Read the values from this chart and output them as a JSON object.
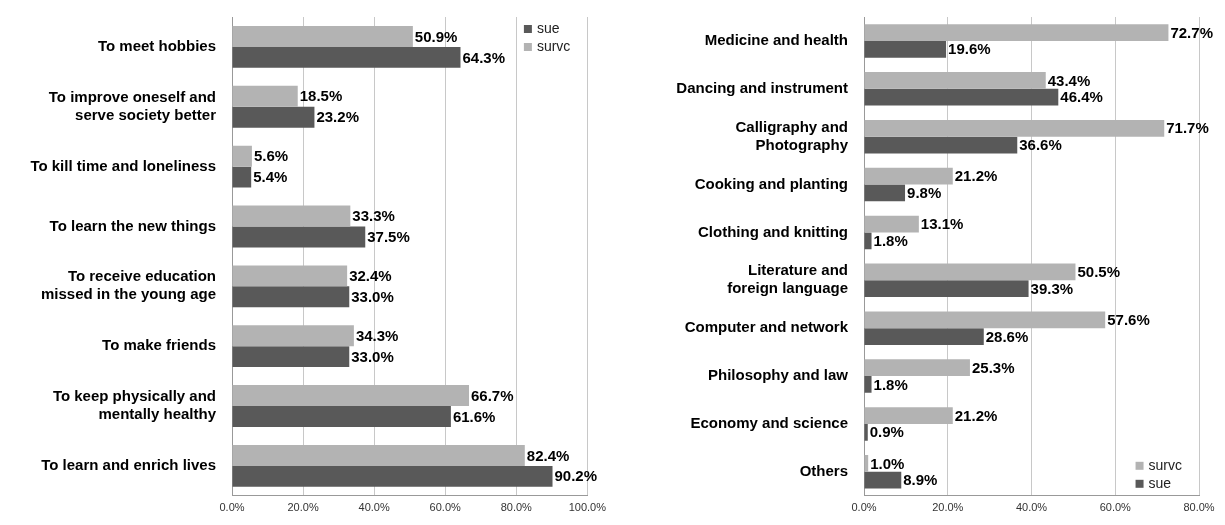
{
  "chart_data": [
    {
      "type": "bar",
      "orientation": "horizontal",
      "categories": [
        "To meet hobbies",
        "To improve oneself and\nserve society better",
        "To kill time and loneliness",
        "To learn the new things",
        "To receive education\nmissed in the young age",
        "To make friends",
        "To keep physically and\nmentally healthy",
        "To learn and enrich lives"
      ],
      "series": [
        {
          "name": "survc",
          "color": "#b3b3b3",
          "values": [
            50.9,
            18.5,
            5.6,
            33.3,
            32.4,
            34.3,
            66.7,
            82.4
          ],
          "value_labels": [
            "50.9%",
            "18.5%",
            "5.6%",
            "33.3%",
            "32.4%",
            "34.3%",
            "66.7%",
            "82.4%"
          ]
        },
        {
          "name": "sue",
          "color": "#595959",
          "values": [
            64.3,
            23.2,
            5.4,
            37.5,
            33.0,
            33.0,
            61.6,
            90.2
          ],
          "value_labels": [
            "64.3%",
            "23.2%",
            "5.4%",
            "37.5%",
            "33.0%",
            "33.0%",
            "61.6%",
            "90.2%"
          ]
        }
      ],
      "xlim": [
        0,
        100
      ],
      "xticks": [
        {
          "value": 0,
          "label": "0.0%"
        },
        {
          "value": 20,
          "label": "20.0%"
        },
        {
          "value": 40,
          "label": "40.0%"
        },
        {
          "value": 60,
          "label": "60.0%"
        },
        {
          "value": 80,
          "label": "80.0%"
        },
        {
          "value": 100,
          "label": "100.0%"
        }
      ],
      "grid": "x",
      "legend": "top right"
    },
    {
      "type": "bar",
      "orientation": "horizontal",
      "categories": [
        "Medicine and health",
        "Dancing and instrument",
        "Calligraphy and\nPhotography",
        "Cooking and planting",
        "Clothing and knitting",
        "Literature and\nforeign language",
        "Computer and network",
        "Philosophy and law",
        "Economy and science",
        "Others"
      ],
      "series": [
        {
          "name": "survc",
          "color": "#b3b3b3",
          "values": [
            72.7,
            43.4,
            71.7,
            21.2,
            13.1,
            50.5,
            57.6,
            25.3,
            21.2,
            1.0
          ],
          "value_labels": [
            "72.7%",
            "43.4%",
            "71.7%",
            "21.2%",
            "13.1%",
            "50.5%",
            "57.6%",
            "25.3%",
            "21.2%",
            "1.0%"
          ]
        },
        {
          "name": "sue",
          "color": "#595959",
          "values": [
            19.6,
            46.4,
            36.6,
            9.8,
            1.8,
            39.3,
            28.6,
            1.8,
            0.9,
            8.9
          ],
          "value_labels": [
            "19.6%",
            "46.4%",
            "36.6%",
            "9.8%",
            "1.8%",
            "39.3%",
            "28.6%",
            "1.8%",
            "0.9%",
            "8.9%"
          ]
        }
      ],
      "xlim": [
        0,
        80
      ],
      "xticks": [
        {
          "value": 0,
          "label": "0.0%"
        },
        {
          "value": 20,
          "label": "20.0%"
        },
        {
          "value": 40,
          "label": "40.0%"
        },
        {
          "value": 60,
          "label": "60.0%"
        },
        {
          "value": 80,
          "label": "80.0%"
        }
      ],
      "grid": "x",
      "legend": "bottom right"
    }
  ]
}
